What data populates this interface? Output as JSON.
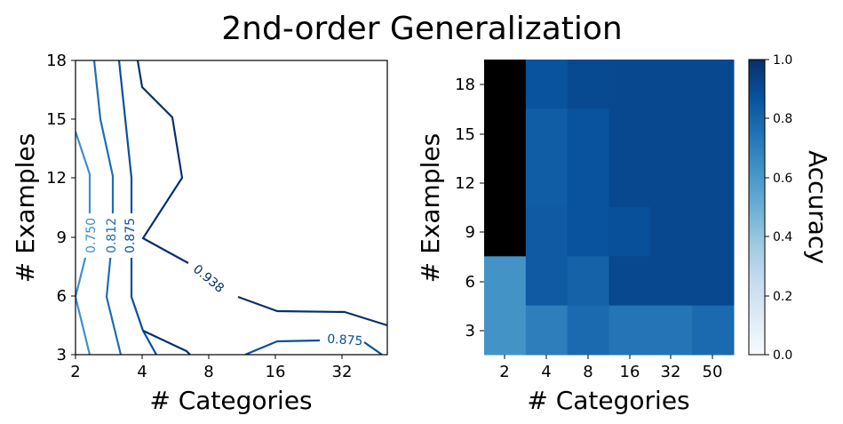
{
  "title": "2nd-order Generalization",
  "colors": {
    "contour_dark": "#08306b",
    "contour_mid": "#0b4f9c",
    "contour_light": "#3f8fcc",
    "masked": "#000000"
  },
  "chart_data": [
    {
      "type": "contour",
      "xlabel": "# Categories",
      "ylabel": "# Examples",
      "x_ticks": [
        "2",
        "4",
        "8",
        "16",
        "32"
      ],
      "y_ticks": [
        "3",
        "6",
        "9",
        "12",
        "15",
        "18"
      ],
      "ylim": [
        3,
        18
      ],
      "x_scale": "log2",
      "contour_labels": [
        {
          "text": "0.750",
          "level": 0.75
        },
        {
          "text": "0.812",
          "level": 0.812
        },
        {
          "text": "0.875",
          "level": 0.875
        },
        {
          "text": "0.938",
          "level": 0.938
        },
        {
          "text": "0.875",
          "level": 0.875
        }
      ]
    },
    {
      "type": "heatmap",
      "xlabel": "# Categories",
      "ylabel": "# Examples",
      "x_categories": [
        "2",
        "4",
        "8",
        "16",
        "32",
        "50"
      ],
      "y_categories": [
        "18",
        "15",
        "12",
        "9",
        "6",
        "3"
      ],
      "values": [
        [
          null,
          0.87,
          0.9,
          0.91,
          0.91,
          0.91
        ],
        [
          null,
          0.83,
          0.87,
          0.91,
          0.91,
          0.91
        ],
        [
          null,
          0.83,
          0.87,
          0.91,
          0.91,
          0.91
        ],
        [
          null,
          0.84,
          0.87,
          0.88,
          0.91,
          0.91
        ],
        [
          0.62,
          0.84,
          0.81,
          0.91,
          0.91,
          0.91
        ],
        [
          0.62,
          0.7,
          0.78,
          0.74,
          0.74,
          0.78
        ]
      ],
      "missing_color": "#000000",
      "colorbar": {
        "label": "Accuracy",
        "ticks": [
          "0.0",
          "0.2",
          "0.4",
          "0.6",
          "0.8",
          "1.0"
        ],
        "range": [
          0.0,
          1.0
        ],
        "colormap": "Blues"
      }
    }
  ]
}
